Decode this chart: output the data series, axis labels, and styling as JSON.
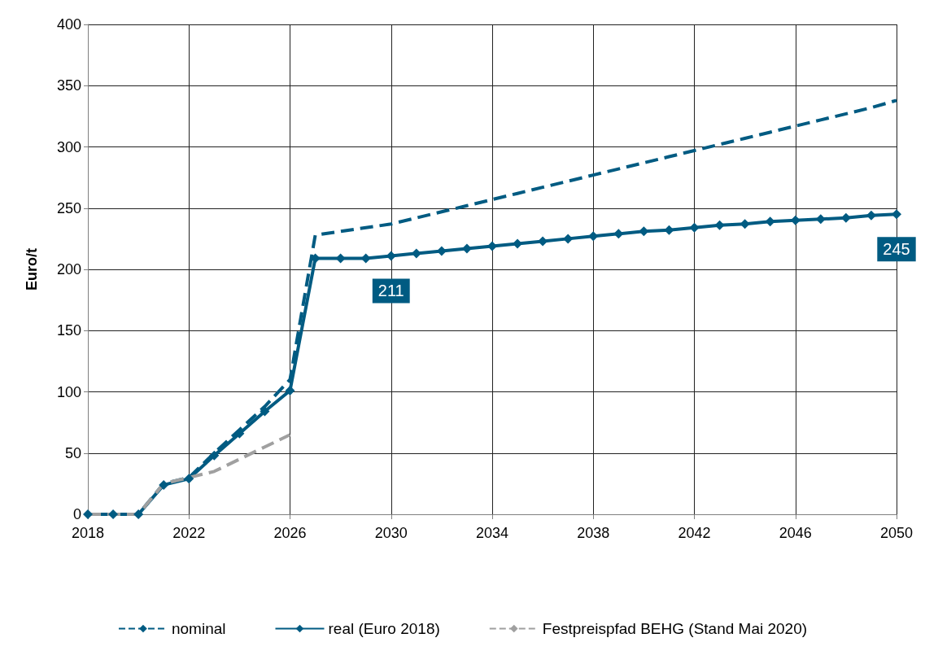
{
  "chart_data": {
    "type": "line",
    "ylabel": "Euro/t",
    "x": [
      2018,
      2019,
      2020,
      2021,
      2022,
      2023,
      2024,
      2025,
      2026,
      2027,
      2028,
      2029,
      2030,
      2031,
      2032,
      2033,
      2034,
      2035,
      2036,
      2037,
      2038,
      2039,
      2040,
      2041,
      2042,
      2043,
      2044,
      2045,
      2046,
      2047,
      2048,
      2049,
      2050
    ],
    "series": [
      {
        "name": "nominal",
        "color": "#005b82",
        "line_style": "dashed",
        "marker": "none",
        "values": [
          0,
          0,
          0,
          25,
          30,
          50,
          69,
          88,
          110,
          228,
          231,
          234,
          237,
          242,
          247,
          252,
          257,
          262,
          267,
          272,
          277,
          282,
          287,
          292,
          297,
          302,
          307,
          312,
          317,
          322,
          327,
          332,
          338
        ]
      },
      {
        "name": "real (Euro 2018)",
        "color": "#005b82",
        "line_style": "solid",
        "marker": "diamond",
        "values": [
          0,
          0,
          0,
          24,
          29,
          48,
          66,
          84,
          101,
          209,
          209,
          209,
          211,
          213,
          215,
          217,
          219,
          221,
          223,
          225,
          227,
          229,
          231,
          232,
          234,
          236,
          237,
          239,
          240,
          241,
          242,
          244,
          245
        ],
        "value_labels": [
          null,
          null,
          null,
          null,
          null,
          null,
          null,
          null,
          null,
          null,
          null,
          null,
          "211",
          null,
          null,
          null,
          null,
          null,
          null,
          null,
          null,
          null,
          null,
          null,
          null,
          null,
          null,
          null,
          null,
          null,
          null,
          null,
          "245"
        ]
      },
      {
        "name": "Festpreispfad BEHG (Stand Mai 2020)",
        "color": "#a0a0a0",
        "line_style": "dashed",
        "marker": "none",
        "x": [
          2018,
          2019,
          2020,
          2021,
          2022,
          2023,
          2024,
          2025,
          2026
        ],
        "values": [
          0,
          0,
          0,
          25,
          30,
          35,
          45,
          55,
          65
        ]
      }
    ],
    "xlim": [
      2018,
      2050
    ],
    "xticks": [
      2018,
      2022,
      2026,
      2030,
      2034,
      2038,
      2042,
      2046,
      2050
    ],
    "ylim": [
      0,
      400
    ],
    "yticks": [
      0,
      50,
      100,
      150,
      200,
      250,
      300,
      350,
      400
    ],
    "grid": true,
    "legend": "bottom"
  }
}
